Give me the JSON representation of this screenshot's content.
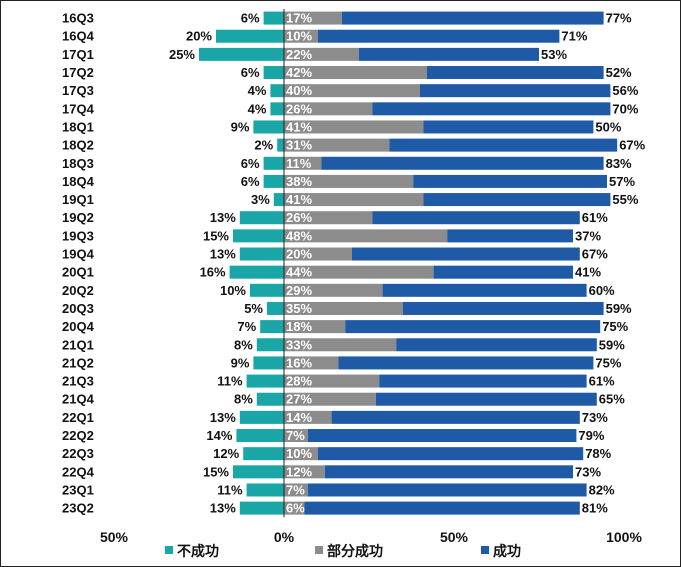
{
  "chart_data": {
    "type": "bar",
    "stacked": true,
    "orientation": "horizontal",
    "categories": [
      "16Q3",
      "16Q4",
      "17Q1",
      "17Q2",
      "17Q3",
      "17Q4",
      "18Q1",
      "18Q2",
      "18Q3",
      "18Q4",
      "19Q1",
      "19Q2",
      "19Q3",
      "19Q4",
      "20Q1",
      "20Q2",
      "20Q3",
      "20Q4",
      "21Q1",
      "21Q2",
      "21Q3",
      "21Q4",
      "22Q1",
      "22Q2",
      "22Q3",
      "22Q4",
      "23Q1",
      "23Q2"
    ],
    "series": [
      {
        "name": "不成功",
        "color": "#1aa6a6",
        "direction": "negative",
        "values": [
          6,
          20,
          25,
          6,
          4,
          4,
          9,
          2,
          6,
          6,
          3,
          13,
          15,
          13,
          16,
          10,
          5,
          7,
          8,
          9,
          11,
          8,
          13,
          14,
          12,
          15,
          11,
          13
        ]
      },
      {
        "name": "部分成功",
        "color": "#8c8c8c",
        "direction": "positive",
        "values": [
          17,
          10,
          22,
          42,
          40,
          26,
          41,
          31,
          11,
          38,
          41,
          26,
          48,
          20,
          44,
          29,
          35,
          18,
          33,
          16,
          28,
          27,
          14,
          7,
          10,
          12,
          7,
          6
        ]
      },
      {
        "name": "成功",
        "color": "#1f5aa6",
        "direction": "positive",
        "values": [
          77,
          71,
          53,
          52,
          56,
          70,
          50,
          67,
          83,
          57,
          55,
          61,
          37,
          67,
          41,
          60,
          59,
          75,
          59,
          75,
          61,
          65,
          73,
          79,
          78,
          73,
          82,
          81
        ]
      }
    ],
    "xlim": [
      -50,
      100
    ],
    "x_ticks": [
      "50%",
      "0%",
      "50%",
      "100%"
    ],
    "legend_position": "bottom"
  },
  "legend": {
    "items": [
      {
        "label": "不成功",
        "color": "#1aa6a6"
      },
      {
        "label": "部分成功",
        "color": "#8c8c8c"
      },
      {
        "label": "成功",
        "color": "#1f5aa6"
      }
    ]
  }
}
